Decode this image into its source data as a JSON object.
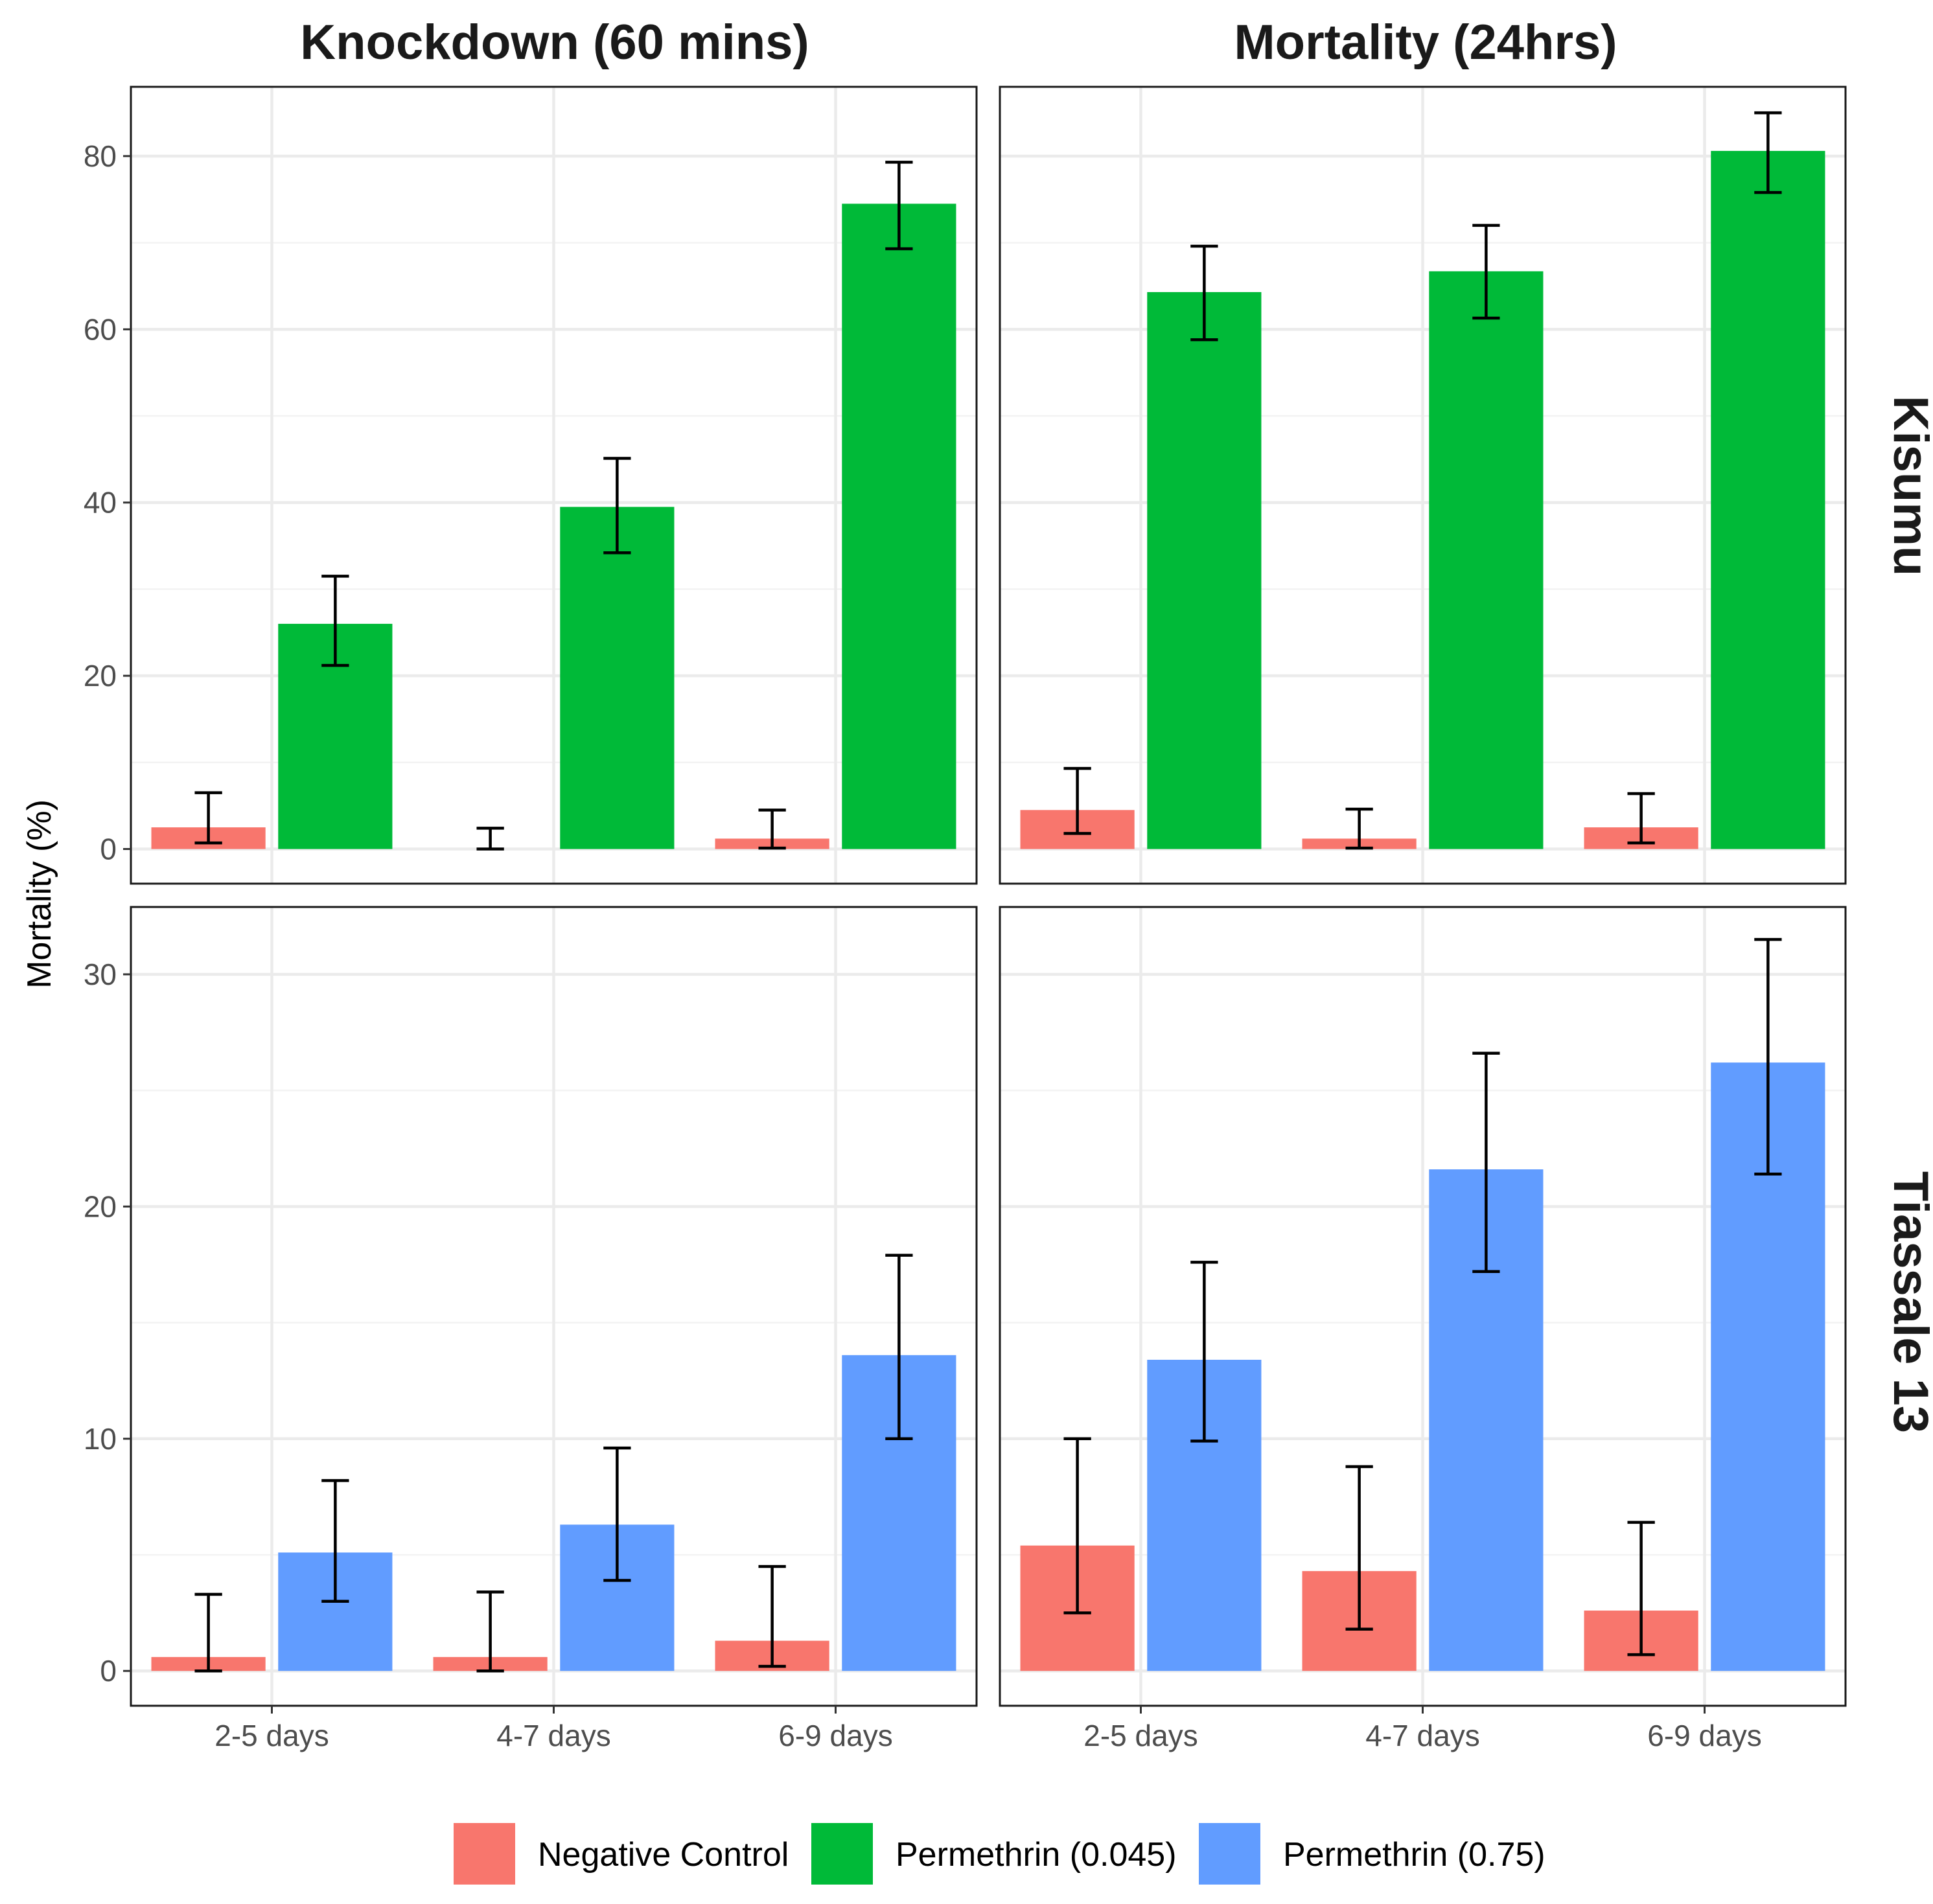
{
  "chart_data": {
    "type": "bar",
    "layout": "faceted-grid",
    "ylabel": "Mortality (%)",
    "xlabel": "",
    "categories": [
      "2-5 days",
      "4-7 days",
      "6-9 days"
    ],
    "columns": [
      "Knockdown (60 mins)",
      "Mortality (24hrs)"
    ],
    "rows": [
      {
        "name": "Kisumu",
        "ylim": [
          -4,
          88
        ],
        "yticks": [
          0,
          20,
          40,
          60,
          80
        ]
      },
      {
        "name": "Tiassale 13",
        "ylim": [
          -1.5,
          32.9
        ],
        "yticks": [
          0,
          10,
          20,
          30
        ]
      }
    ],
    "legend": {
      "position": "bottom",
      "entries": [
        {
          "name": "Negative Control",
          "color": "#F8766D"
        },
        {
          "name": "Permethrin (0.045)",
          "color": "#00BA38"
        },
        {
          "name": "Permethrin (0.75)",
          "color": "#619CFF"
        }
      ]
    },
    "panels": [
      {
        "row": 0,
        "col": 0,
        "series": [
          {
            "name": "Negative Control",
            "color": "#F8766D",
            "values": [
              2.5,
              0,
              1.2
            ],
            "lower": [
              0.7,
              0,
              0.1
            ],
            "upper": [
              6.5,
              2.4,
              4.5
            ]
          },
          {
            "name": "Permethrin (0.045)",
            "color": "#00BA38",
            "values": [
              26,
              39.5,
              74.5
            ],
            "lower": [
              21.2,
              34.2,
              69.3
            ],
            "upper": [
              31.5,
              45.1,
              79.3
            ]
          }
        ]
      },
      {
        "row": 0,
        "col": 1,
        "series": [
          {
            "name": "Negative Control",
            "color": "#F8766D",
            "values": [
              4.5,
              1.2,
              2.5
            ],
            "lower": [
              1.8,
              0.1,
              0.7
            ],
            "upper": [
              9.3,
              4.6,
              6.4
            ]
          },
          {
            "name": "Permethrin (0.045)",
            "color": "#00BA38",
            "values": [
              64.3,
              66.7,
              80.6
            ],
            "lower": [
              58.8,
              61.3,
              75.8
            ],
            "upper": [
              69.6,
              72.0,
              85.0
            ]
          }
        ]
      },
      {
        "row": 1,
        "col": 0,
        "series": [
          {
            "name": "Negative Control",
            "color": "#F8766D",
            "values": [
              0.6,
              0.6,
              1.3
            ],
            "lower": [
              0,
              0,
              0.2
            ],
            "upper": [
              3.3,
              3.4,
              4.5
            ]
          },
          {
            "name": "Permethrin (0.75)",
            "color": "#619CFF",
            "values": [
              5.1,
              6.3,
              13.6
            ],
            "lower": [
              3.0,
              3.9,
              10.0
            ],
            "upper": [
              8.2,
              9.6,
              17.9
            ]
          }
        ]
      },
      {
        "row": 1,
        "col": 1,
        "series": [
          {
            "name": "Negative Control",
            "color": "#F8766D",
            "values": [
              5.4,
              4.3,
              2.6
            ],
            "lower": [
              2.5,
              1.8,
              0.7
            ],
            "upper": [
              10.0,
              8.8,
              6.4
            ]
          },
          {
            "name": "Permethrin (0.75)",
            "color": "#619CFF",
            "values": [
              13.4,
              21.6,
              26.2
            ],
            "lower": [
              9.9,
              17.2,
              21.4
            ],
            "upper": [
              17.6,
              26.6,
              31.5
            ]
          }
        ]
      }
    ]
  }
}
